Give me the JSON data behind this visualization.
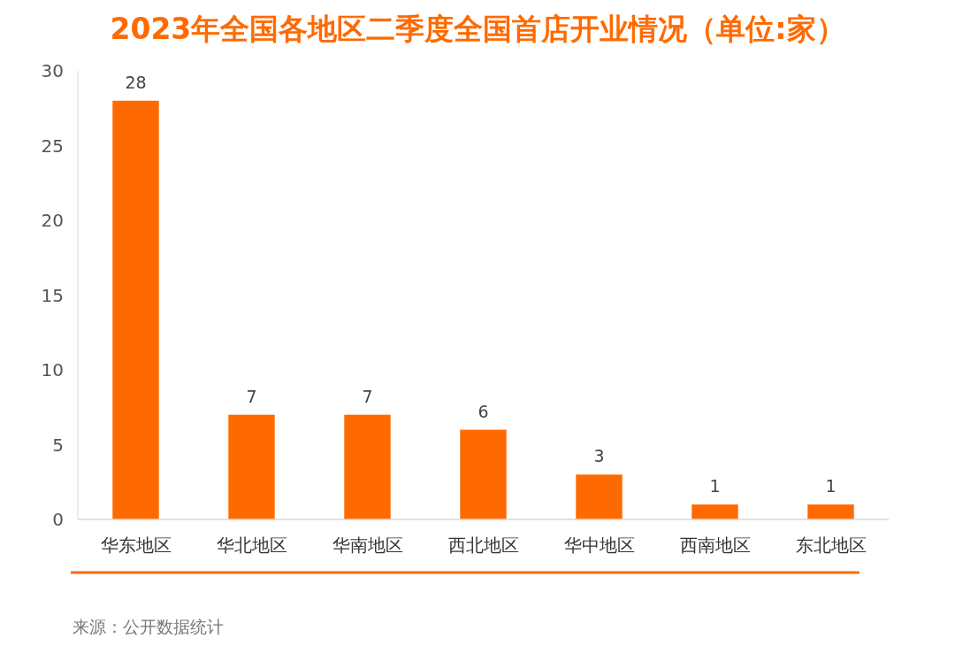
{
  "chart_data": {
    "type": "bar",
    "title": "2023年全国各地区二季度全国首店开业情况（单位:家）",
    "categories": [
      "华东地区",
      "华北地区",
      "华南地区",
      "西北地区",
      "华中地区",
      "西南地区",
      "东北地区"
    ],
    "values": [
      28,
      7,
      7,
      6,
      3,
      1,
      1
    ],
    "color": "#ff6a00",
    "ylim": [
      0,
      30
    ],
    "yticks": [
      0,
      5,
      10,
      15,
      20,
      25,
      30
    ],
    "grid": false,
    "data_labels": true,
    "annotations": [
      "来源：公开数据统计"
    ]
  }
}
